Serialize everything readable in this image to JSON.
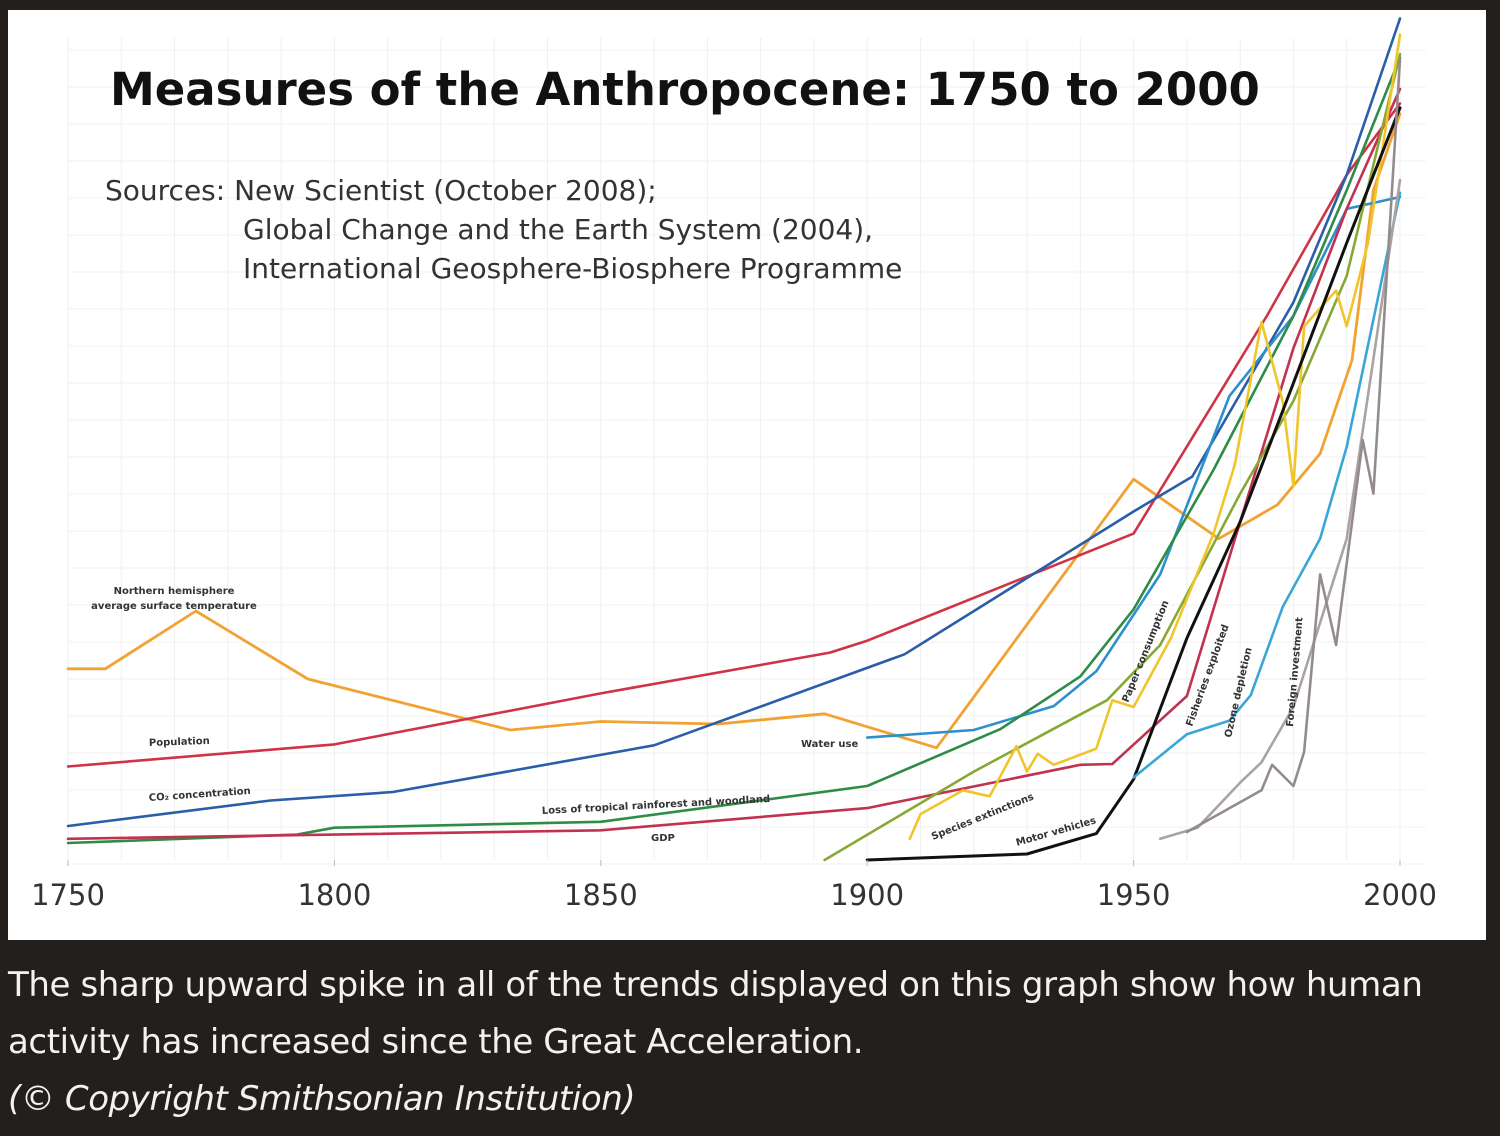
{
  "chart_data": {
    "type": "line",
    "title": "Measures of the Anthropocene:  1750 to 2000",
    "sources": [
      "Sources:  New Scientist (October 2008);",
      "Global Change and the Earth System (2004),",
      "International Geosphere-Biosphere Programme"
    ],
    "xlim": [
      1750,
      2000
    ],
    "ylim": [
      0,
      100
    ],
    "x_ticks": [
      "1750",
      "1800",
      "1850",
      "1900",
      "1950",
      "2000"
    ],
    "grid": true,
    "series": [
      {
        "name": "Northern hemisphere average surface temperature",
        "color": "#f2a233",
        "points": [
          [
            1750,
            22.5
          ],
          [
            1757,
            22.5
          ],
          [
            1774,
            29.3
          ],
          [
            1795,
            21.3
          ],
          [
            1833,
            15.3
          ],
          [
            1850,
            16.3
          ],
          [
            1872,
            16.0
          ],
          [
            1892,
            17.2
          ],
          [
            1913,
            13.2
          ],
          [
            1950,
            44.8
          ],
          [
            1966,
            37.8
          ],
          [
            1977,
            41.8
          ],
          [
            1985,
            47.8
          ],
          [
            1991,
            58.8
          ],
          [
            1995,
            78.8
          ],
          [
            2000,
            87.8
          ]
        ]
      },
      {
        "name": "Population",
        "color": "#cf3347",
        "points": [
          [
            1750,
            11.0
          ],
          [
            1800,
            13.6
          ],
          [
            1850,
            19.6
          ],
          [
            1893,
            24.4
          ],
          [
            1900,
            25.8
          ],
          [
            1950,
            38.4
          ],
          [
            1975,
            64.0
          ],
          [
            1990,
            80.6
          ],
          [
            2000,
            89.0
          ]
        ]
      },
      {
        "name": "CO₂ concentration",
        "color": "#2a5ea8",
        "points": [
          [
            1750,
            4.0
          ],
          [
            1788,
            7.0
          ],
          [
            1811,
            8.0
          ],
          [
            1860,
            13.5
          ],
          [
            1907,
            24.2
          ],
          [
            1950,
            41.0
          ],
          [
            1961,
            45.1
          ],
          [
            1980,
            65.6
          ],
          [
            1990,
            80.6
          ],
          [
            2000,
            99.0
          ]
        ]
      },
      {
        "name": "Water use",
        "color": "#2d90cc",
        "points": [
          [
            1900,
            14.4
          ],
          [
            1920,
            15.3
          ],
          [
            1935,
            18.1
          ],
          [
            1943,
            22.2
          ],
          [
            1955,
            33.6
          ],
          [
            1968,
            54.6
          ],
          [
            1980,
            64.0
          ],
          [
            1990,
            76.6
          ],
          [
            2000,
            78.0
          ]
        ]
      },
      {
        "name": "Loss of tropical rainforest and woodland",
        "color": "#2e8c47",
        "points": [
          [
            1750,
            2.0
          ],
          [
            1793,
            3.0
          ],
          [
            1800,
            3.8
          ],
          [
            1850,
            4.5
          ],
          [
            1900,
            8.7
          ],
          [
            1925,
            15.4
          ],
          [
            1940,
            21.6
          ],
          [
            1950,
            29.5
          ],
          [
            1965,
            45.9
          ],
          [
            1980,
            64.0
          ],
          [
            1990,
            78.8
          ],
          [
            2000,
            94.4
          ]
        ]
      },
      {
        "name": "GDP",
        "color": "#c2314f",
        "points": [
          [
            1750,
            2.5
          ],
          [
            1850,
            3.5
          ],
          [
            1900,
            6.1
          ],
          [
            1940,
            11.2
          ],
          [
            1946,
            11.3
          ],
          [
            1960,
            19.3
          ],
          [
            1970,
            39.8
          ],
          [
            1980,
            60.2
          ],
          [
            1990,
            76.6
          ],
          [
            2000,
            90.7
          ]
        ]
      },
      {
        "name": "Species extinctions",
        "color": "#88a834",
        "points": [
          [
            1892,
            0.0
          ],
          [
            1920,
            10.4
          ],
          [
            1945,
            18.8
          ],
          [
            1955,
            25.3
          ],
          [
            1970,
            43.1
          ],
          [
            1980,
            54.0
          ],
          [
            1990,
            68.7
          ],
          [
            2000,
            94.8
          ]
        ]
      },
      {
        "name": "Paper consumption",
        "color": "#f0c52c",
        "points": [
          [
            1908,
            2.5
          ],
          [
            1910,
            5.4
          ],
          [
            1918,
            8.2
          ],
          [
            1923,
            7.5
          ],
          [
            1928,
            13.4
          ],
          [
            1930,
            10.4
          ],
          [
            1932,
            12.5
          ],
          [
            1935,
            11.2
          ],
          [
            1943,
            13.1
          ],
          [
            1946,
            18.8
          ],
          [
            1950,
            18.0
          ],
          [
            1957,
            26.1
          ],
          [
            1965,
            38.4
          ],
          [
            1969,
            46.5
          ],
          [
            1974,
            63.3
          ],
          [
            1978,
            53.9
          ],
          [
            1980,
            44.0
          ],
          [
            1982,
            62.8
          ],
          [
            1988,
            67.0
          ],
          [
            1990,
            62.8
          ],
          [
            1994,
            72.6
          ],
          [
            2000,
            97.1
          ]
        ]
      },
      {
        "name": "Motor vehicles",
        "color": "#111111",
        "points": [
          [
            1900,
            0.0
          ],
          [
            1930,
            0.7
          ],
          [
            1943,
            3.1
          ],
          [
            1950,
            9.5
          ],
          [
            1960,
            26.1
          ],
          [
            1970,
            39.8
          ],
          [
            1980,
            56.1
          ],
          [
            1990,
            72.6
          ],
          [
            2000,
            88.5
          ]
        ]
      },
      {
        "name": "Fisheries exploited",
        "color": "#3aa6d8",
        "points": [
          [
            1950,
            9.7
          ],
          [
            1960,
            14.8
          ],
          [
            1968,
            16.4
          ],
          [
            1972,
            19.4
          ],
          [
            1978,
            29.8
          ],
          [
            1985,
            37.8
          ],
          [
            1990,
            48.6
          ],
          [
            2000,
            78.5
          ]
        ]
      },
      {
        "name": "Ozone depletion",
        "color": "#aaa3a3",
        "points": [
          [
            1955,
            2.5
          ],
          [
            1962,
            3.8
          ],
          [
            1970,
            9.1
          ],
          [
            1974,
            11.5
          ],
          [
            1980,
            18.0
          ],
          [
            1990,
            37.8
          ],
          [
            2000,
            80.0
          ]
        ]
      },
      {
        "name": "Foreign investment",
        "color": "#948c8c",
        "points": [
          [
            1960,
            3.3
          ],
          [
            1974,
            8.2
          ],
          [
            1976,
            11.2
          ],
          [
            1980,
            8.7
          ],
          [
            1982,
            12.7
          ],
          [
            1985,
            33.6
          ],
          [
            1988,
            25.3
          ],
          [
            1993,
            49.4
          ],
          [
            1995,
            43.1
          ],
          [
            2000,
            94.2
          ]
        ]
      }
    ],
    "labels": [
      {
        "series": "Northern hemisphere average surface temperature",
        "lines": [
          "Northern hemisphere",
          "average surface temperature"
        ]
      },
      {
        "series": "Population",
        "lines": [
          "Population"
        ]
      },
      {
        "series": "CO₂ concentration",
        "lines": [
          "CO₂ concentration"
        ]
      },
      {
        "series": "Water use",
        "lines": [
          "Water use"
        ]
      },
      {
        "series": "Loss of tropical rainforest and woodland",
        "lines": [
          "Loss of tropical rainforest and woodland"
        ]
      },
      {
        "series": "GDP",
        "lines": [
          "GDP"
        ]
      },
      {
        "series": "Species extinctions",
        "lines": [
          "Species extinctions"
        ]
      },
      {
        "series": "Motor vehicles",
        "lines": [
          "Motor vehicles"
        ]
      },
      {
        "series": "Paper consumption",
        "lines": [
          "Paper consumption"
        ]
      },
      {
        "series": "Fisheries exploited",
        "lines": [
          "Fisheries exploited"
        ]
      },
      {
        "series": "Ozone depletion",
        "lines": [
          "Ozone depletion"
        ]
      },
      {
        "series": "Foreign investment",
        "lines": [
          "Foreign investment"
        ]
      }
    ]
  },
  "caption": {
    "text": "The sharp upward spike in all of the trends displayed on this graph show how human activity has increased since the Great Acceleration.",
    "copyright": "(© Copyright Smithsonian Institution)"
  }
}
